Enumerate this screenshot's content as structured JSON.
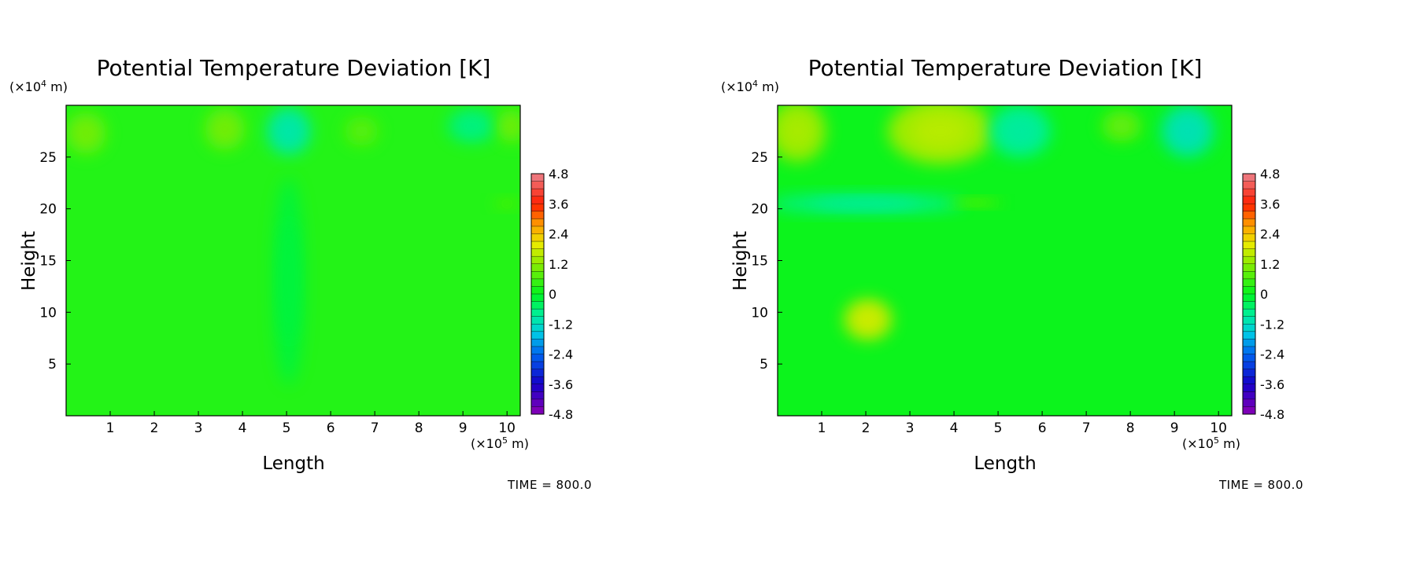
{
  "chart_data": [
    {
      "type": "heatmap",
      "title": "Potential Temperature Deviation [K]",
      "xlabel": "Length",
      "ylabel": "Height",
      "x_unit": "(×10⁵ m)",
      "y_unit_prefix": "(×10",
      "y_unit_exp": "4",
      "y_unit_suffix": " m)",
      "x_unit_prefix": "(×10",
      "x_unit_exp": "5",
      "x_unit_suffix": " m)",
      "xlim": [
        0,
        10.3
      ],
      "ylim": [
        0,
        30
      ],
      "x_ticks": [
        "1",
        "2",
        "3",
        "4",
        "5",
        "6",
        "7",
        "8",
        "9",
        "10"
      ],
      "y_ticks": [
        "5",
        "10",
        "15",
        "20",
        "25"
      ],
      "colorbar_ticks": [
        "4.8",
        "3.6",
        "2.4",
        "1.2",
        "0",
        "-1.2",
        "-2.4",
        "-3.6",
        "-4.8"
      ],
      "colorbar_range": [
        -4.8,
        4.8
      ],
      "background_value": 0.3,
      "time_label": "TIME = 800.0",
      "features": [
        {
          "x": 0.45,
          "y": 27.3,
          "rx": 0.45,
          "ry": 2.0,
          "value": 0.9
        },
        {
          "x": 3.6,
          "y": 27.7,
          "rx": 0.45,
          "ry": 2.0,
          "value": 0.9
        },
        {
          "x": 5.05,
          "y": 27.5,
          "rx": 0.5,
          "ry": 2.3,
          "value": -0.9
        },
        {
          "x": 6.7,
          "y": 27.5,
          "rx": 0.38,
          "ry": 1.4,
          "value": 0.7
        },
        {
          "x": 9.2,
          "y": 28.0,
          "rx": 0.55,
          "ry": 1.6,
          "value": -0.6
        },
        {
          "x": 10.1,
          "y": 28.0,
          "rx": 0.3,
          "ry": 1.6,
          "value": 0.9
        },
        {
          "x": 5.05,
          "y": 13.0,
          "rx": 0.35,
          "ry": 10.0,
          "value": -0.2
        },
        {
          "x": 10.0,
          "y": 20.5,
          "rx": 0.3,
          "ry": 0.5,
          "value": 0.6
        }
      ]
    },
    {
      "type": "heatmap",
      "title": "Potential Temperature Deviation [K]",
      "xlabel": "Length",
      "ylabel": "Height",
      "y_unit_prefix": "(×10",
      "y_unit_exp": "4",
      "y_unit_suffix": " m)",
      "x_unit_prefix": "(×10",
      "x_unit_exp": "5",
      "x_unit_suffix": " m)",
      "xlim": [
        0,
        10.3
      ],
      "ylim": [
        0,
        30
      ],
      "x_ticks": [
        "1",
        "2",
        "3",
        "4",
        "5",
        "6",
        "7",
        "8",
        "9",
        "10"
      ],
      "y_ticks": [
        "5",
        "10",
        "15",
        "20",
        "25"
      ],
      "colorbar_ticks": [
        "4.8",
        "3.6",
        "2.4",
        "1.2",
        "0",
        "-1.2",
        "-2.4",
        "-3.6",
        "-4.8"
      ],
      "colorbar_range": [
        -4.8,
        4.8
      ],
      "background_value": 0.1,
      "time_label": "TIME = 800.0",
      "features": [
        {
          "x": 0.45,
          "y": 27.5,
          "rx": 0.65,
          "ry": 3.0,
          "value": 1.3
        },
        {
          "x": 3.7,
          "y": 27.5,
          "rx": 1.2,
          "ry": 3.2,
          "value": 1.4
        },
        {
          "x": 5.5,
          "y": 27.5,
          "rx": 0.7,
          "ry": 2.5,
          "value": -0.8
        },
        {
          "x": 7.8,
          "y": 28.0,
          "rx": 0.45,
          "ry": 1.5,
          "value": 0.8
        },
        {
          "x": 9.3,
          "y": 27.5,
          "rx": 0.6,
          "ry": 2.5,
          "value": -1.0
        },
        {
          "x": 2.0,
          "y": 20.5,
          "rx": 2.2,
          "ry": 0.9,
          "value": -0.8
        },
        {
          "x": 2.05,
          "y": 9.3,
          "rx": 0.55,
          "ry": 2.0,
          "value": 1.6
        },
        {
          "x": 4.5,
          "y": 20.6,
          "rx": 0.6,
          "ry": 0.4,
          "value": 0.7
        }
      ]
    }
  ]
}
